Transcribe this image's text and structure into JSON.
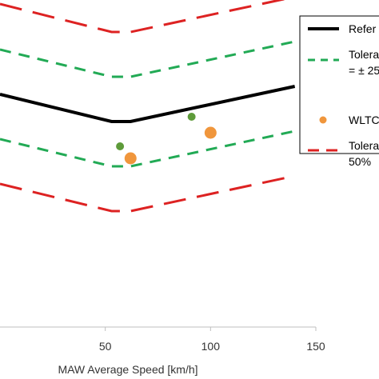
{
  "chart_data": {
    "type": "line",
    "xlabel": "MAW Average Speed [km/h]",
    "xlim": [
      0,
      150
    ],
    "x_ticks": [
      "50",
      "100",
      "150"
    ],
    "series": [
      {
        "name": "Refer",
        "style": "solid",
        "color": "#000000",
        "points": [
          [
            0,
            118
          ],
          [
            53,
            152
          ],
          [
            62,
            152
          ],
          [
            140,
            108
          ]
        ]
      },
      {
        "name": "Tolera = ± 25",
        "style": "dashed",
        "color": "#22aa55",
        "points": [
          [
            0,
            62
          ],
          [
            53,
            96
          ],
          [
            62,
            96
          ],
          [
            140,
            52
          ]
        ]
      },
      {
        "name": "Tolera = ± 25",
        "style": "dashed",
        "color": "#22aa55",
        "points": [
          [
            0,
            174
          ],
          [
            53,
            208
          ],
          [
            62,
            208
          ],
          [
            140,
            164
          ]
        ]
      },
      {
        "name": "Tolera 50%",
        "style": "longdash",
        "color": "#dd2222",
        "points": [
          [
            0,
            5
          ],
          [
            53,
            40
          ],
          [
            62,
            40
          ],
          [
            140,
            -4
          ]
        ]
      },
      {
        "name": "Tolera 50%",
        "style": "longdash",
        "color": "#dd2222",
        "points": [
          [
            0,
            230
          ],
          [
            53,
            264
          ],
          [
            62,
            264
          ],
          [
            140,
            220
          ]
        ]
      }
    ],
    "scatter": [
      {
        "name": "WLTC",
        "color": "#f0963c",
        "size": "large",
        "points": [
          [
            62,
            198
          ],
          [
            100,
            166
          ]
        ]
      },
      {
        "name": "",
        "color": "#5e9b3a",
        "size": "small",
        "points": [
          [
            57,
            183
          ],
          [
            91,
            146
          ]
        ]
      }
    ],
    "legend": {
      "position": "top-right",
      "entries": [
        {
          "label_lines": [
            "Refer"
          ],
          "style": "solid",
          "color": "#000000"
        },
        {
          "label_lines": [
            "Tolera",
            "= ± 25"
          ],
          "style": "dashed",
          "color": "#22aa55"
        },
        {
          "label_lines": [
            "WLTC"
          ],
          "style": "marker",
          "color": "#f0963c"
        },
        {
          "label_lines": [
            "Tolera",
            "50%"
          ],
          "style": "longdash",
          "color": "#dd2222"
        }
      ]
    }
  }
}
